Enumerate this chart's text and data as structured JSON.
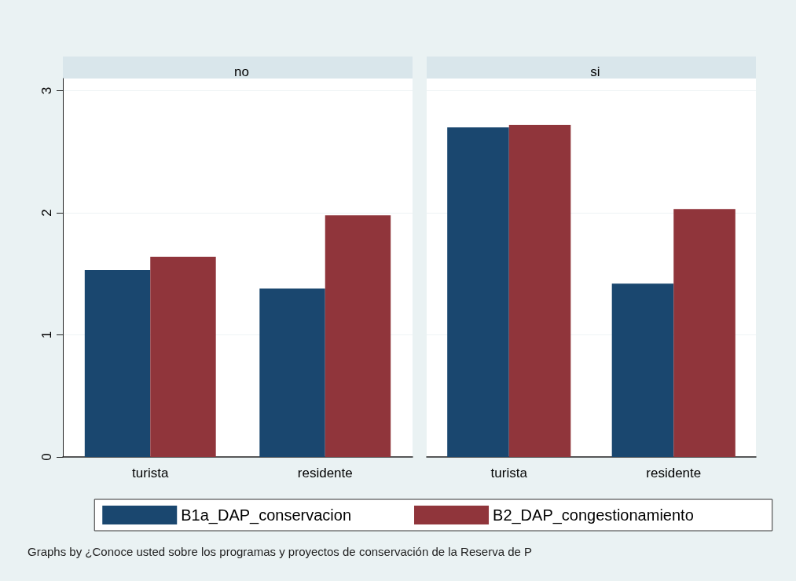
{
  "chart_data": [
    {
      "type": "bar",
      "title": "no",
      "categories": [
        "turista",
        "residente"
      ],
      "series": [
        {
          "name": "B1a_DAP_conservacion",
          "color": "#1a476f",
          "values": [
            1.53,
            1.38
          ]
        },
        {
          "name": "B2_DAP_congestionamiento",
          "color": "#90353b",
          "values": [
            1.64,
            1.98
          ]
        }
      ],
      "ylim": [
        0,
        3.1
      ],
      "yticks": [
        0,
        1,
        2,
        3
      ],
      "grid": "y",
      "legend": "bottom",
      "annotations": [
        "Graphs by ¿Conoce usted sobre los programas y proyectos de conservación de la Reserva de P"
      ]
    },
    {
      "type": "bar",
      "title": "si",
      "categories": [
        "turista",
        "residente"
      ],
      "series": [
        {
          "color": "#1a476f",
          "values": [
            2.7,
            1.42
          ]
        },
        {
          "color": "#90353b",
          "values": [
            2.72,
            2.03
          ]
        }
      ],
      "ylim": [
        0,
        3.1
      ],
      "yticks": [
        0,
        1,
        2,
        3
      ],
      "grid": "y",
      "tick_labels": "x",
      "legend": false
    }
  ]
}
